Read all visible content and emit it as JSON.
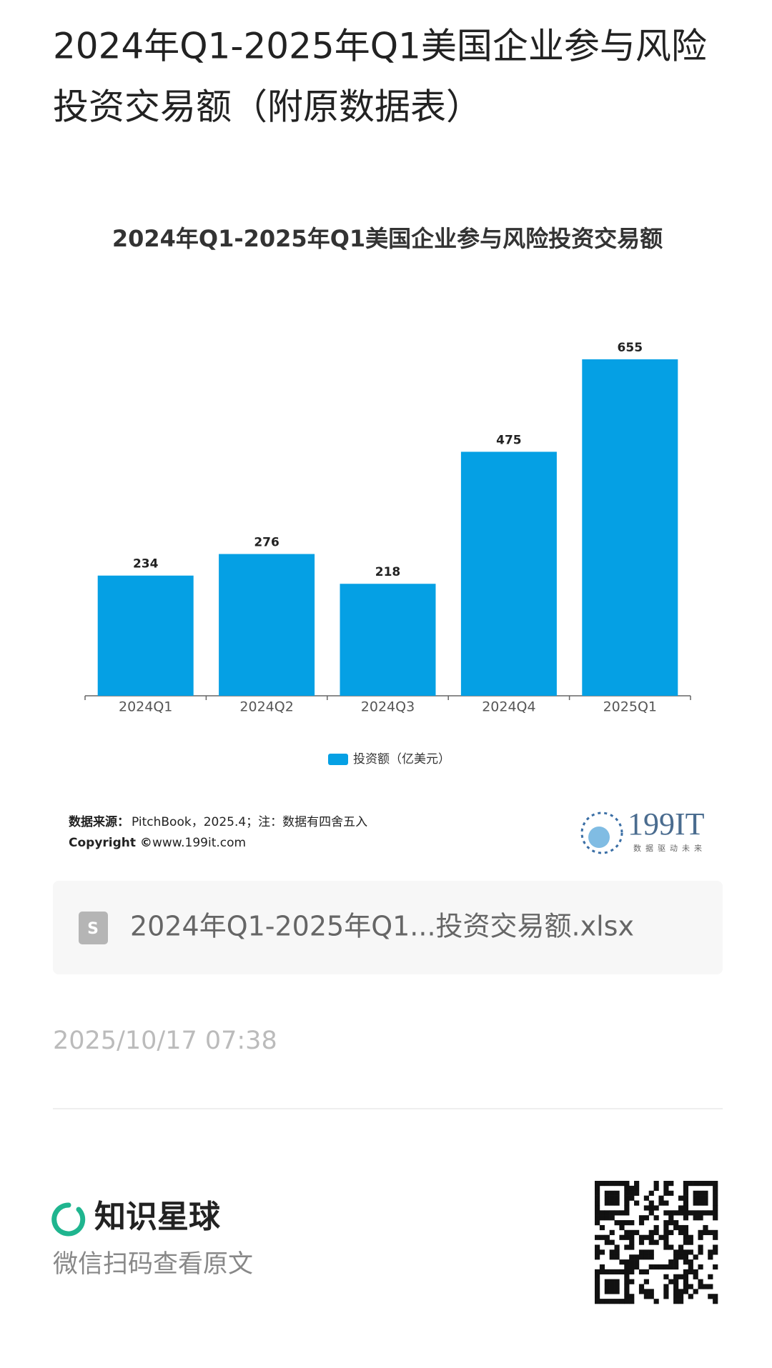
{
  "header": {
    "title_lines": [
      "2024年Q1-2025年Q1美国企业参与风险",
      "投资交易额（附原数据表）"
    ]
  },
  "chart_data": {
    "type": "bar",
    "title": "2024年Q1-2025年Q1美国企业参与风险投资交易额",
    "categories": [
      "2024Q1",
      "2024Q2",
      "2024Q3",
      "2024Q4",
      "2025Q1"
    ],
    "series": [
      {
        "name": "投资额（亿美元）",
        "color": "#05a0e4",
        "values": [
          234,
          276,
          218,
          475,
          655
        ]
      }
    ]
  },
  "source": {
    "label": "数据来源：",
    "text": "PitchBook，2025.4；注：数据有四舍五入",
    "copyright_label": "Copyright ©",
    "copyright_text": "www.199it.com"
  },
  "brand": {
    "name": "199IT",
    "slogan": "数据驱动未来"
  },
  "file": {
    "icon": "S",
    "name": "2024年Q1-2025年Q1...投资交易额.xlsx"
  },
  "date": "2025/10/17 07:38",
  "footer": {
    "app": "知识星球",
    "hint": "微信扫码查看原文"
  }
}
